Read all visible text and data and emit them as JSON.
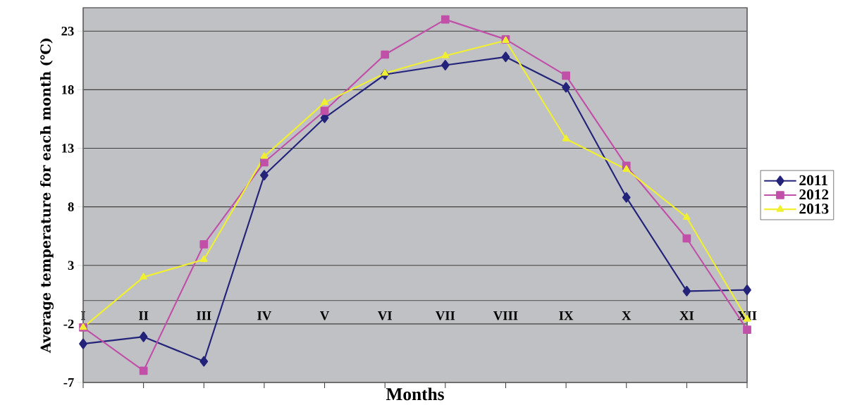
{
  "chart_data": {
    "type": "line",
    "xlabel": "Months",
    "ylabel": "Average temperature for each month (℃)",
    "categories": [
      "I",
      "II",
      "III",
      "IV",
      "V",
      "VI",
      "VII",
      "VIII",
      "IX",
      "X",
      "XI",
      "XII"
    ],
    "series": [
      {
        "name": "2011",
        "color": "#23237a",
        "marker": "diamond",
        "values": [
          -3.7,
          -3.1,
          -5.2,
          10.7,
          15.6,
          19.3,
          20.1,
          20.8,
          18.2,
          8.8,
          0.8,
          0.9
        ]
      },
      {
        "name": "2012",
        "color": "#c050a8",
        "marker": "square",
        "values": [
          -2.3,
          -6.0,
          4.8,
          11.8,
          16.2,
          21.0,
          24.0,
          22.3,
          19.2,
          11.5,
          5.3,
          -2.5
        ]
      },
      {
        "name": "2013",
        "color": "#f0f030",
        "marker": "triangle",
        "values": [
          -2.3,
          2.0,
          3.5,
          12.3,
          16.9,
          19.4,
          20.9,
          22.2,
          13.8,
          11.2,
          7.1,
          -1.6
        ]
      }
    ],
    "ylim": [
      -7,
      25
    ],
    "yticks": [
      -7,
      -2,
      3,
      8,
      13,
      18,
      23
    ],
    "grid": "y",
    "legend": "right",
    "line_style": "solid"
  }
}
